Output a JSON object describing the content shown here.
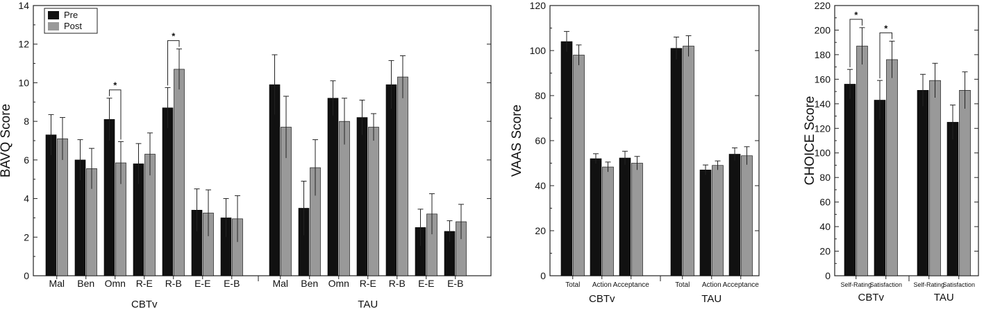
{
  "colors": {
    "pre": "#111111",
    "post": "#999999",
    "axis": "#222222"
  },
  "legend": {
    "pre": "Pre",
    "post": "Post"
  },
  "chart_data": [
    {
      "id": "bavq",
      "type": "bar",
      "ylabel": "BAVQ Score",
      "ylim": [
        0,
        14
      ],
      "yticks": [
        0,
        2,
        4,
        6,
        8,
        10,
        12,
        14
      ],
      "groups": [
        "CBTv",
        "TAU"
      ],
      "categories": [
        "Mal",
        "Ben",
        "Omn",
        "R-E",
        "R-B",
        "E-E",
        "E-B",
        "Mal",
        "Ben",
        "Omn",
        "R-E",
        "R-B",
        "E-E",
        "E-B"
      ],
      "series": [
        {
          "name": "Pre",
          "values": [
            7.3,
            6.0,
            8.1,
            5.8,
            8.7,
            3.4,
            3.0,
            9.9,
            3.5,
            9.2,
            8.2,
            9.9,
            2.5,
            2.3
          ],
          "errors": [
            1.05,
            1.05,
            1.1,
            1.05,
            1.05,
            1.1,
            1.0,
            1.55,
            1.4,
            0.9,
            0.9,
            1.25,
            0.95,
            0.55
          ]
        },
        {
          "name": "Post",
          "values": [
            7.1,
            5.55,
            5.85,
            6.3,
            10.7,
            3.25,
            2.95,
            7.7,
            5.6,
            8.0,
            7.7,
            10.3,
            3.2,
            2.8
          ],
          "errors": [
            1.1,
            1.05,
            1.1,
            1.1,
            1.05,
            1.2,
            1.2,
            1.6,
            1.45,
            1.2,
            0.7,
            1.1,
            1.05,
            0.9
          ]
        }
      ],
      "significance": [
        {
          "index": 2,
          "label": "*"
        },
        {
          "index": 4,
          "label": "*"
        }
      ]
    },
    {
      "id": "vaas",
      "type": "bar",
      "ylabel": "VAAS  Score",
      "ylim": [
        0,
        120
      ],
      "yticks": [
        0,
        20,
        40,
        60,
        80,
        100,
        120
      ],
      "groups": [
        "CBTv",
        "TAU"
      ],
      "categories": [
        "Total",
        "Action",
        "Acceptance",
        "Total",
        "Action",
        "Acceptance"
      ],
      "series": [
        {
          "name": "Pre",
          "values": [
            104,
            52,
            52.3,
            101,
            47,
            54
          ],
          "errors": [
            4.5,
            2.2,
            3.0,
            5.0,
            2.2,
            2.8
          ]
        },
        {
          "name": "Post",
          "values": [
            98,
            48.3,
            50,
            102,
            49,
            53.3
          ],
          "errors": [
            4.5,
            2.2,
            3.0,
            4.6,
            2.0,
            4.0
          ]
        }
      ]
    },
    {
      "id": "choice",
      "type": "bar",
      "ylabel": "CHOICE Score",
      "ylim": [
        0,
        220
      ],
      "yticks": [
        0,
        20,
        40,
        60,
        80,
        100,
        120,
        140,
        160,
        180,
        200,
        220
      ],
      "groups": [
        "CBTv",
        "TAU"
      ],
      "categories": [
        "Self-Rating",
        "Satisfaction",
        "Self-Rating",
        "Satisfaction"
      ],
      "series": [
        {
          "name": "Pre",
          "values": [
            156,
            143,
            151,
            125
          ],
          "errors": [
            12,
            16,
            13,
            14
          ]
        },
        {
          "name": "Post",
          "values": [
            187,
            176,
            159,
            151
          ],
          "errors": [
            15,
            15,
            14,
            15
          ]
        }
      ],
      "significance": [
        {
          "index": 0,
          "label": "*"
        },
        {
          "index": 1,
          "label": "*"
        }
      ]
    }
  ]
}
